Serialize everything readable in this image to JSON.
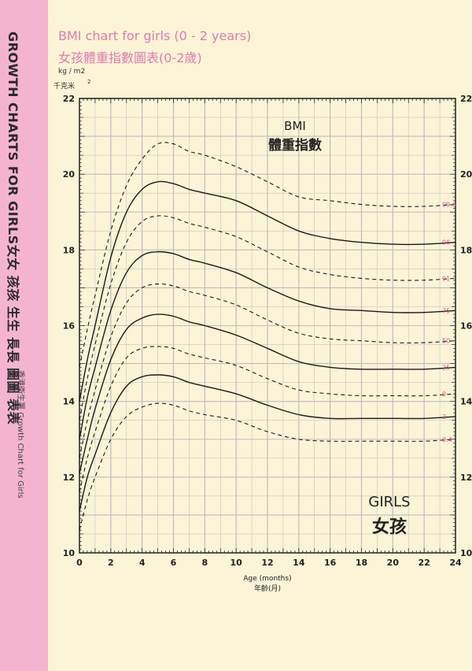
{
  "sidebar": {
    "title": "GROWTH CHARTS FOR GIRLS女女 孩孩 生生 長長 圖圖 表表",
    "subtitle": "香港衞生署 Growth Chart for Girls"
  },
  "header": {
    "title_en": "BMI chart for girls (0 - 2 years)",
    "title_zh": "女孩體重指數圖表(0-2歲)",
    "unit_en": "kg / m2",
    "unit_zh": "千克米",
    "unit_sup": "2"
  },
  "colors": {
    "sidebar": "#f4b4d0",
    "background": "#fbf4d6",
    "title": "#e07ab0",
    "percentile_label": "#d4558f",
    "grid": "#bdbdbd",
    "curve": "#1a1a1a"
  },
  "chart_data": {
    "type": "line",
    "title": "BMI",
    "title_zh": "體重指數",
    "corner_label_en": "GIRLS",
    "corner_label_zh": "女孩",
    "xlabel": "Age (months)",
    "xlabel_zh": "年齡(月)",
    "xlim": [
      0,
      24
    ],
    "ylim": [
      10,
      22
    ],
    "grid": true,
    "x_ticks": [
      "0",
      "2",
      "4",
      "6",
      "8",
      "10",
      "12",
      "14",
      "16",
      "18",
      "20",
      "22",
      "24"
    ],
    "y_ticks": [
      "10",
      "12",
      "14",
      "16",
      "18",
      "20",
      "22"
    ],
    "x": [
      0,
      0.5,
      1,
      2,
      3,
      4,
      5,
      6,
      7,
      8,
      10,
      12,
      14,
      16,
      18,
      20,
      22,
      24
    ],
    "series": [
      {
        "name": "99.6",
        "style": "dashed",
        "values": [
          14.9,
          15.9,
          16.8,
          18.5,
          19.7,
          20.4,
          20.8,
          20.8,
          20.6,
          20.5,
          20.2,
          19.8,
          19.4,
          19.3,
          19.2,
          19.15,
          19.15,
          19.2
        ]
      },
      {
        "name": "98",
        "style": "solid",
        "values": [
          14.0,
          15.1,
          16.0,
          17.8,
          19.0,
          19.6,
          19.8,
          19.75,
          19.6,
          19.5,
          19.3,
          18.9,
          18.5,
          18.3,
          18.2,
          18.15,
          18.15,
          18.2
        ]
      },
      {
        "name": "91",
        "style": "dashed",
        "values": [
          13.5,
          14.6,
          15.5,
          17.1,
          18.2,
          18.75,
          18.9,
          18.85,
          18.7,
          18.6,
          18.35,
          17.95,
          17.55,
          17.35,
          17.25,
          17.2,
          17.2,
          17.25
        ]
      },
      {
        "name": "75",
        "style": "solid",
        "values": [
          13.0,
          14.1,
          14.9,
          16.4,
          17.4,
          17.85,
          17.95,
          17.9,
          17.75,
          17.65,
          17.4,
          17.0,
          16.65,
          16.45,
          16.4,
          16.35,
          16.35,
          16.4
        ]
      },
      {
        "name": "50",
        "style": "dashed",
        "values": [
          12.5,
          13.5,
          14.3,
          15.7,
          16.6,
          17.0,
          17.1,
          17.05,
          16.9,
          16.8,
          16.55,
          16.15,
          15.8,
          15.65,
          15.6,
          15.55,
          15.55,
          15.6
        ]
      },
      {
        "name": "25",
        "style": "solid",
        "values": [
          12.1,
          13.0,
          13.8,
          15.1,
          15.9,
          16.2,
          16.3,
          16.25,
          16.1,
          16.0,
          15.75,
          15.4,
          15.05,
          14.9,
          14.85,
          14.85,
          14.85,
          14.9
        ]
      },
      {
        "name": "9",
        "style": "dashed",
        "values": [
          11.6,
          12.5,
          13.2,
          14.4,
          15.15,
          15.4,
          15.45,
          15.4,
          15.25,
          15.15,
          14.95,
          14.6,
          14.3,
          14.2,
          14.15,
          14.15,
          14.15,
          14.2
        ]
      },
      {
        "name": "2",
        "style": "solid",
        "values": [
          11.1,
          12.0,
          12.6,
          13.7,
          14.4,
          14.65,
          14.7,
          14.65,
          14.5,
          14.4,
          14.2,
          13.9,
          13.65,
          13.55,
          13.55,
          13.55,
          13.55,
          13.6
        ]
      },
      {
        "name": "0.4",
        "style": "dashed",
        "values": [
          10.6,
          11.4,
          12.0,
          13.0,
          13.6,
          13.85,
          13.95,
          13.9,
          13.75,
          13.65,
          13.5,
          13.2,
          13.0,
          12.95,
          12.95,
          12.95,
          12.95,
          13.0
        ]
      }
    ]
  }
}
